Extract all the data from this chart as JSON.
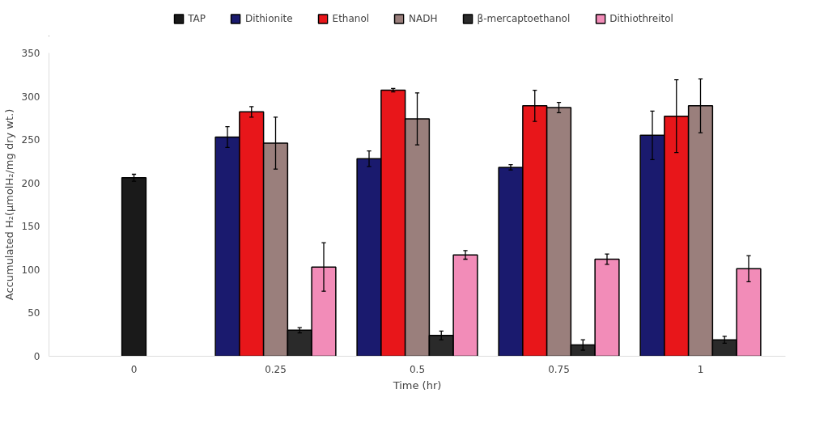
{
  "chart_data": {
    "type": "bar",
    "xlabel": "Time (hr)",
    "ylabel": "Accumulated H₂(μmolH₂/mg dry wt.)",
    "categories": [
      "0",
      "0.25",
      "0.5",
      "0.75",
      "1"
    ],
    "series": [
      {
        "name": "TAP",
        "color": "#1a1a1a",
        "values": [
          206,
          null,
          null,
          null,
          null
        ],
        "errors": [
          4,
          null,
          null,
          null,
          null
        ]
      },
      {
        "name": "Dithionite",
        "color": "#1a1a6e",
        "values": [
          null,
          253,
          228,
          218,
          255
        ],
        "errors": [
          null,
          12,
          9,
          3,
          28
        ]
      },
      {
        "name": "Ethanol",
        "color": "#e8161a",
        "values": [
          null,
          282,
          307,
          289,
          277
        ],
        "errors": [
          null,
          6,
          2,
          18,
          42
        ]
      },
      {
        "name": "NADH",
        "color": "#9a7f7c",
        "values": [
          null,
          246,
          274,
          287,
          289
        ],
        "errors": [
          null,
          30,
          30,
          6,
          31
        ]
      },
      {
        "name": "β-mercaptoethanol",
        "color": "#2a2a2a",
        "values": [
          null,
          30,
          24,
          13,
          19
        ],
        "errors": [
          null,
          3,
          5,
          6,
          4
        ]
      },
      {
        "name": "Dithiothreitol",
        "color": "#f28cb8",
        "values": [
          null,
          103,
          117,
          112,
          101
        ],
        "errors": [
          null,
          28,
          5,
          6,
          15
        ]
      }
    ],
    "ylim": [
      0,
      350
    ],
    "yticks": [
      0,
      50,
      100,
      150,
      200,
      250,
      300,
      350
    ],
    "grid": false,
    "legend": "top"
  }
}
